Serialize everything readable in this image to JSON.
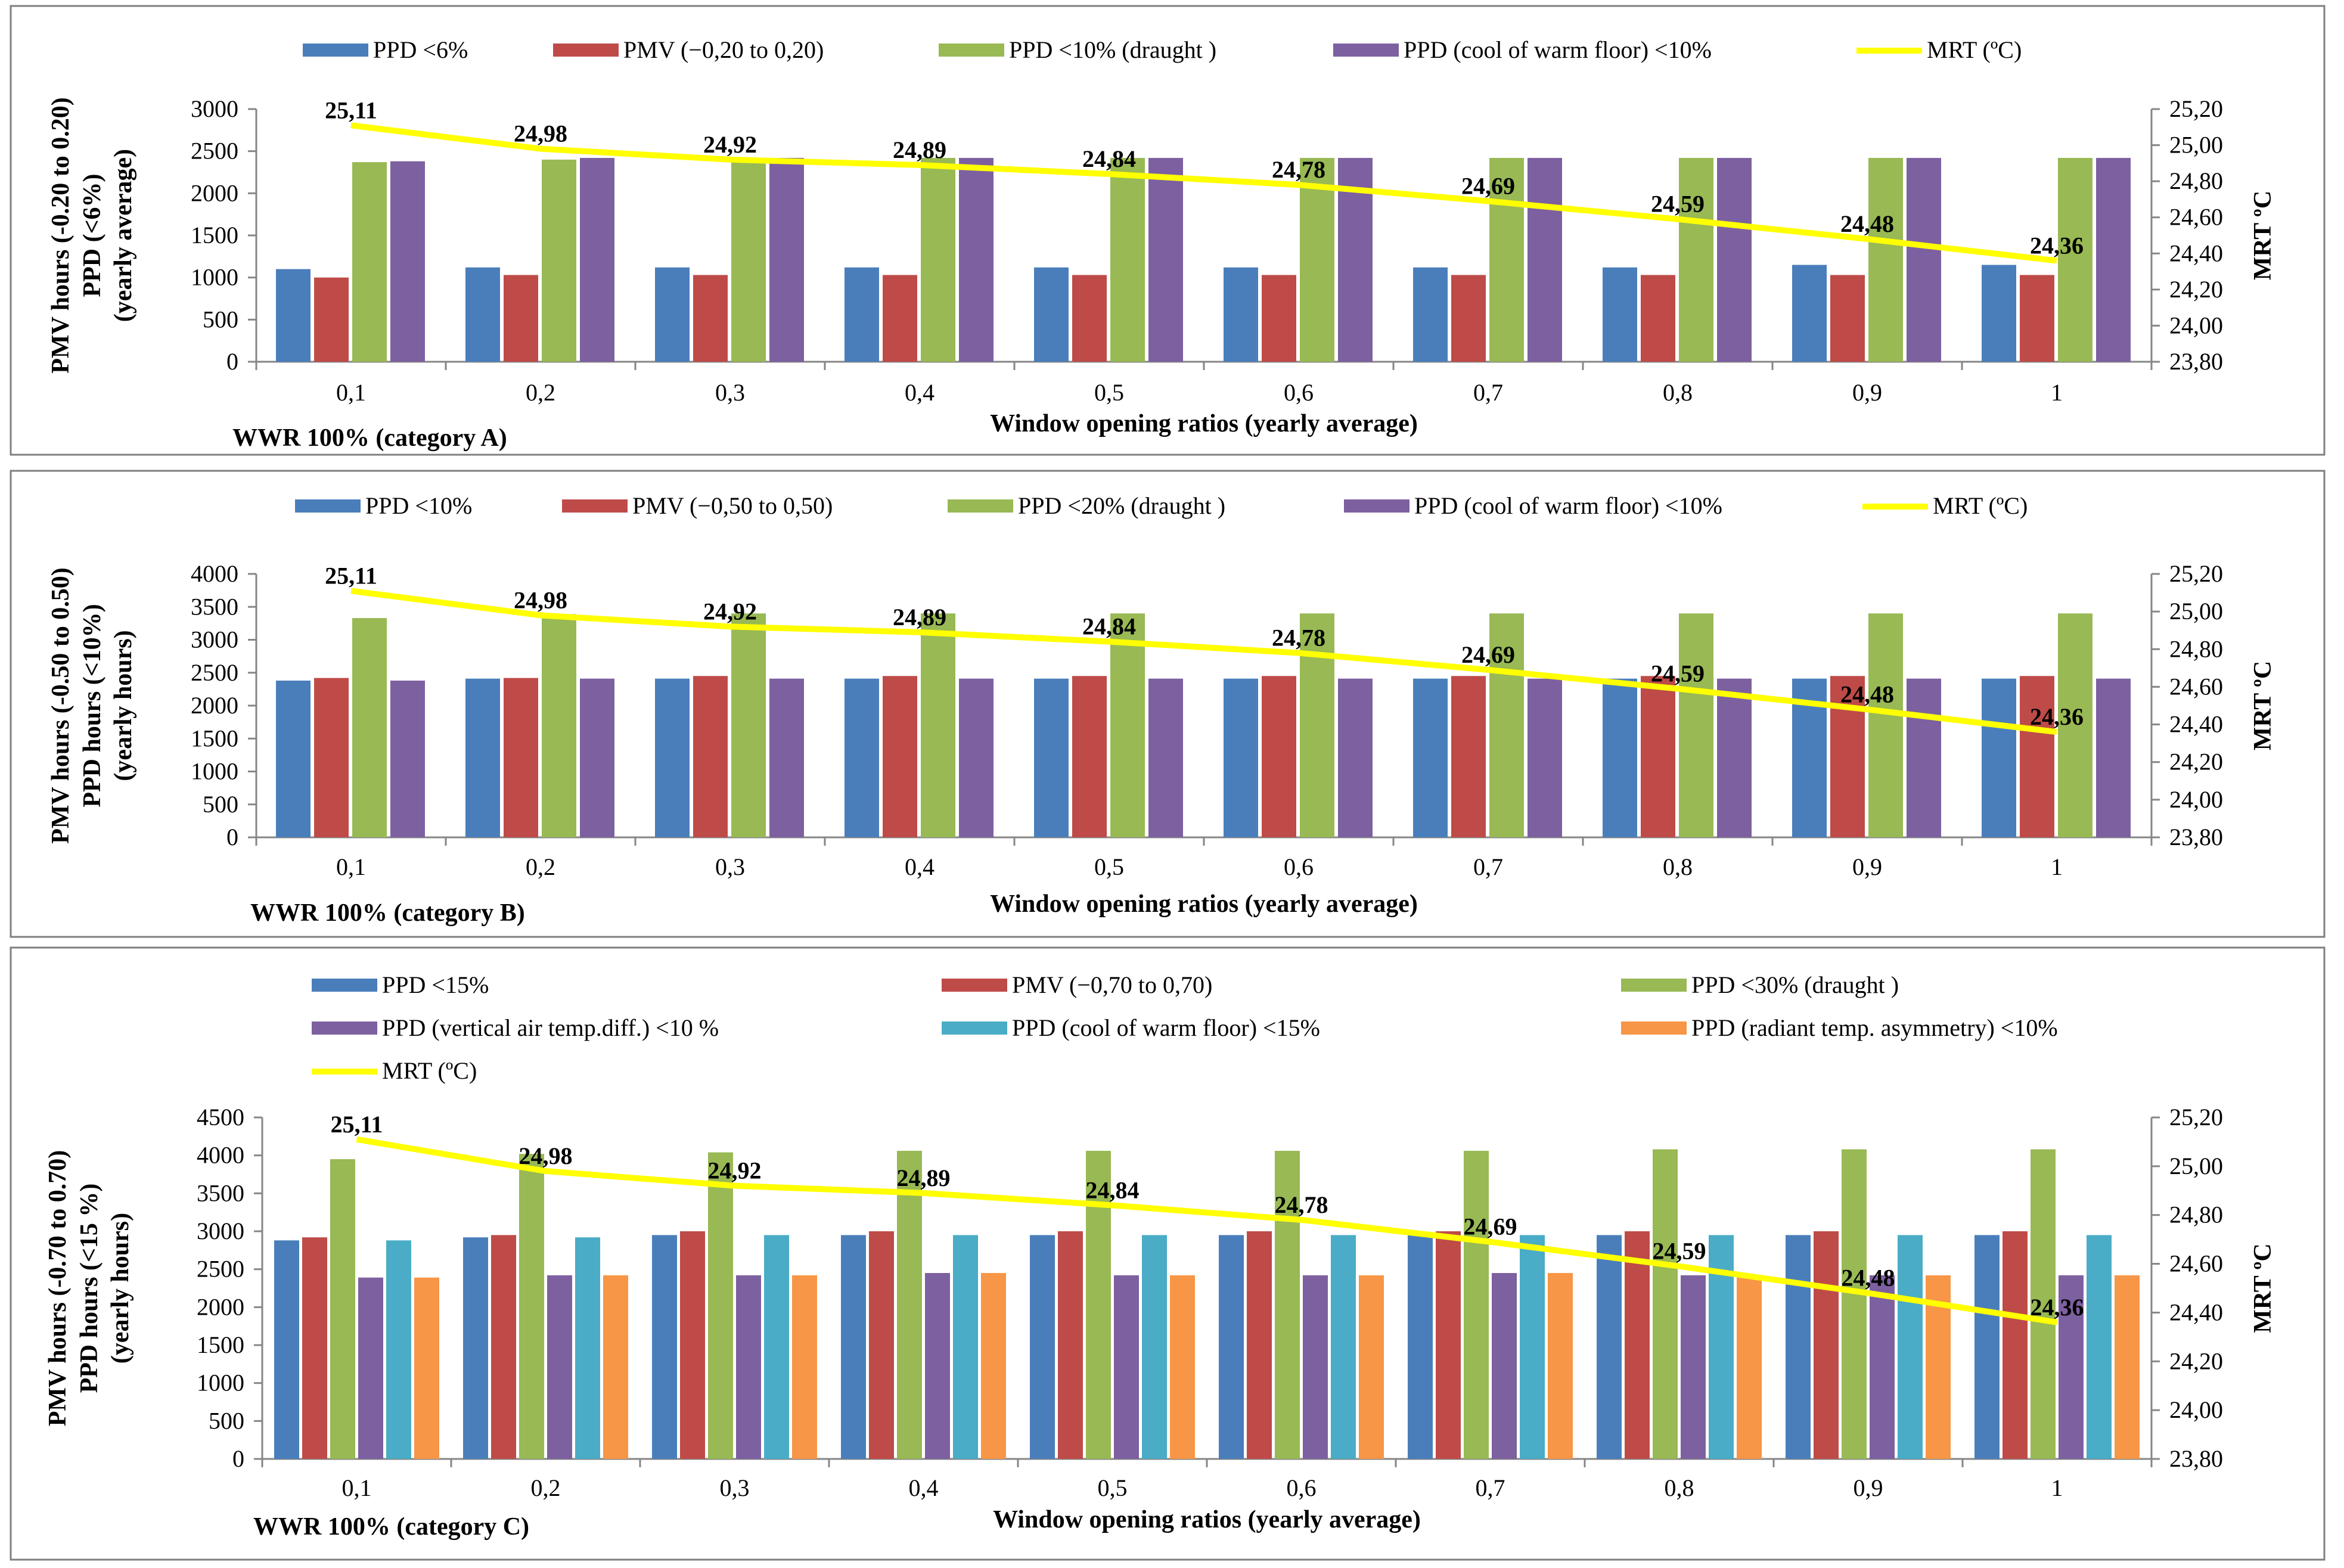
{
  "chart_data": [
    {
      "type": "bar",
      "panel_label": "WWR 100% (category A)",
      "xlabel": "Window  opening ratios (yearly average)",
      "ylabel_lines": [
        "PMV hours (-0.20 to 0.20)",
        "PPD (<6%)",
        "(yearly average)"
      ],
      "y2label": "MRT ºC",
      "categories": [
        "0,1",
        "0,2",
        "0,3",
        "0,4",
        "0,5",
        "0,6",
        "0,7",
        "0,8",
        "0,9",
        "1"
      ],
      "ylim": [
        0,
        3000
      ],
      "yticks": [
        0,
        500,
        1000,
        1500,
        2000,
        2500,
        3000
      ],
      "ytick_labels": [
        "0",
        "500",
        "1000",
        "1500",
        "2000",
        "2500",
        "3000"
      ],
      "y2lim": [
        23.8,
        25.2
      ],
      "y2ticks": [
        23.8,
        24.0,
        24.2,
        24.4,
        24.6,
        24.8,
        25.0,
        25.2
      ],
      "y2tick_labels": [
        "23,80",
        "24,00",
        "24,20",
        "24,40",
        "24,60",
        "24,80",
        "25,00",
        "25,20"
      ],
      "series": [
        {
          "name": "PPD <6%",
          "color": "#4a7ebb",
          "values": [
            1100,
            1120,
            1120,
            1120,
            1120,
            1120,
            1120,
            1120,
            1150,
            1150
          ]
        },
        {
          "name": "PMV (−0,20 to 0,20)",
          "color": "#be4b48",
          "values": [
            1000,
            1030,
            1030,
            1030,
            1030,
            1030,
            1030,
            1030,
            1030,
            1030
          ]
        },
        {
          "name": "PPD <10% (draught )",
          "color": "#98b954",
          "values": [
            2370,
            2400,
            2420,
            2420,
            2420,
            2420,
            2420,
            2420,
            2420,
            2420
          ]
        },
        {
          "name": "PPD (cool of warm floor) <10%",
          "color": "#7d60a0",
          "values": [
            2380,
            2420,
            2420,
            2420,
            2420,
            2420,
            2420,
            2420,
            2420,
            2420
          ]
        }
      ],
      "line": {
        "name": "MRT (ºC)",
        "color": "#ffff00",
        "values": [
          25.11,
          24.98,
          24.92,
          24.89,
          24.84,
          24.78,
          24.69,
          24.59,
          24.48,
          24.36
        ],
        "labels": [
          "25,11",
          "24,98",
          "24,92",
          "24,89",
          "24,84",
          "24,78",
          "24,69",
          "24,59",
          "24,48",
          "24,36"
        ]
      }
    },
    {
      "type": "bar",
      "panel_label": "WWR 100% (category B)",
      "xlabel": "Window  opening ratios (yearly average)",
      "ylabel_lines": [
        "PMV hours (-0.50 to 0.50)",
        "PPD hours (<10%)",
        "(yearly hours)"
      ],
      "y2label": "MRT ºC",
      "categories": [
        "0,1",
        "0,2",
        "0,3",
        "0,4",
        "0,5",
        "0,6",
        "0,7",
        "0,8",
        "0,9",
        "1"
      ],
      "ylim": [
        0,
        4000
      ],
      "yticks": [
        0,
        500,
        1000,
        1500,
        2000,
        2500,
        3000,
        3500,
        4000
      ],
      "ytick_labels": [
        "0",
        "500",
        "1000",
        "1500",
        "2000",
        "2500",
        "3000",
        "3500",
        "4000"
      ],
      "y2lim": [
        23.8,
        25.2
      ],
      "y2ticks": [
        23.8,
        24.0,
        24.2,
        24.4,
        24.6,
        24.8,
        25.0,
        25.2
      ],
      "y2tick_labels": [
        "23,80",
        "24,00",
        "24,20",
        "24,40",
        "24,60",
        "24,80",
        "25,00",
        "25,20"
      ],
      "series": [
        {
          "name": "PPD <10%",
          "color": "#4a7ebb",
          "values": [
            2380,
            2410,
            2410,
            2410,
            2410,
            2410,
            2410,
            2410,
            2410,
            2410
          ]
        },
        {
          "name": "PMV (−0,50 to 0,50)",
          "color": "#be4b48",
          "values": [
            2420,
            2420,
            2450,
            2450,
            2450,
            2450,
            2450,
            2450,
            2450,
            2450
          ]
        },
        {
          "name": "PPD <20% (draught )",
          "color": "#98b954",
          "values": [
            3330,
            3390,
            3400,
            3400,
            3400,
            3400,
            3400,
            3400,
            3400,
            3400
          ]
        },
        {
          "name": "PPD (cool of warm floor) <10%",
          "color": "#7d60a0",
          "values": [
            2380,
            2410,
            2410,
            2410,
            2410,
            2410,
            2410,
            2410,
            2410,
            2410
          ]
        }
      ],
      "line": {
        "name": "MRT (ºC)",
        "color": "#ffff00",
        "values": [
          25.11,
          24.98,
          24.92,
          24.89,
          24.84,
          24.78,
          24.69,
          24.59,
          24.48,
          24.36
        ],
        "labels": [
          "25,11",
          "24,98",
          "24,92",
          "24,89",
          "24,84",
          "24,78",
          "24,69",
          "24,59",
          "24,48",
          "24,36"
        ]
      }
    },
    {
      "type": "bar",
      "panel_label": "WWR 100% (category C)",
      "xlabel": "Window  opening ratios (yearly average)",
      "ylabel_lines": [
        "PMV hours (-0.70 to 0.70)",
        "PPD hours (<15 %)",
        "(yearly hours)"
      ],
      "y2label": "MRT ºC",
      "categories": [
        "0,1",
        "0,2",
        "0,3",
        "0,4",
        "0,5",
        "0,6",
        "0,7",
        "0,8",
        "0,9",
        "1"
      ],
      "ylim": [
        0,
        4500
      ],
      "yticks": [
        0,
        500,
        1000,
        1500,
        2000,
        2500,
        3000,
        3500,
        4000,
        4500
      ],
      "ytick_labels": [
        "0",
        "500",
        "1000",
        "1500",
        "2000",
        "2500",
        "3000",
        "3500",
        "4000",
        "4500"
      ],
      "y2lim": [
        23.8,
        25.2
      ],
      "y2ticks": [
        23.8,
        24.0,
        24.2,
        24.4,
        24.6,
        24.8,
        25.0,
        25.2
      ],
      "y2tick_labels": [
        "23,80",
        "24,00",
        "24,20",
        "24,40",
        "24,60",
        "24,80",
        "25,00",
        "25,20"
      ],
      "series": [
        {
          "name": "PPD <15%",
          "color": "#4a7ebb",
          "values": [
            2880,
            2920,
            2950,
            2950,
            2950,
            2950,
            2950,
            2950,
            2950,
            2950
          ]
        },
        {
          "name": "PMV (−0,70 to 0,70)",
          "color": "#be4b48",
          "values": [
            2920,
            2950,
            3000,
            3000,
            3000,
            3000,
            3000,
            3000,
            3000,
            3000
          ]
        },
        {
          "name": "PPD <30% (draught )",
          "color": "#98b954",
          "values": [
            3950,
            4020,
            4040,
            4060,
            4060,
            4060,
            4060,
            4080,
            4080,
            4080
          ]
        },
        {
          "name": "PPD (vertical air temp.diff.) <10 %",
          "color": "#7d60a0",
          "values": [
            2390,
            2420,
            2420,
            2450,
            2420,
            2420,
            2450,
            2420,
            2420,
            2420
          ]
        },
        {
          "name": "PPD (cool of warm floor) <15%",
          "color": "#4aacc6",
          "values": [
            2880,
            2920,
            2950,
            2950,
            2950,
            2950,
            2950,
            2950,
            2950,
            2950
          ]
        },
        {
          "name": "PPD (radiant temp. asymmetry) <10%",
          "color": "#f79646",
          "values": [
            2390,
            2420,
            2420,
            2450,
            2420,
            2420,
            2450,
            2420,
            2420,
            2420
          ]
        }
      ],
      "line": {
        "name": "MRT (ºC)",
        "color": "#ffff00",
        "values": [
          25.11,
          24.98,
          24.92,
          24.89,
          24.84,
          24.78,
          24.69,
          24.59,
          24.48,
          24.36
        ],
        "labels": [
          "25,11",
          "24,98",
          "24,92",
          "24,89",
          "24,84",
          "24,78",
          "24,69",
          "24,59",
          "24,48",
          "24,36"
        ]
      }
    }
  ]
}
